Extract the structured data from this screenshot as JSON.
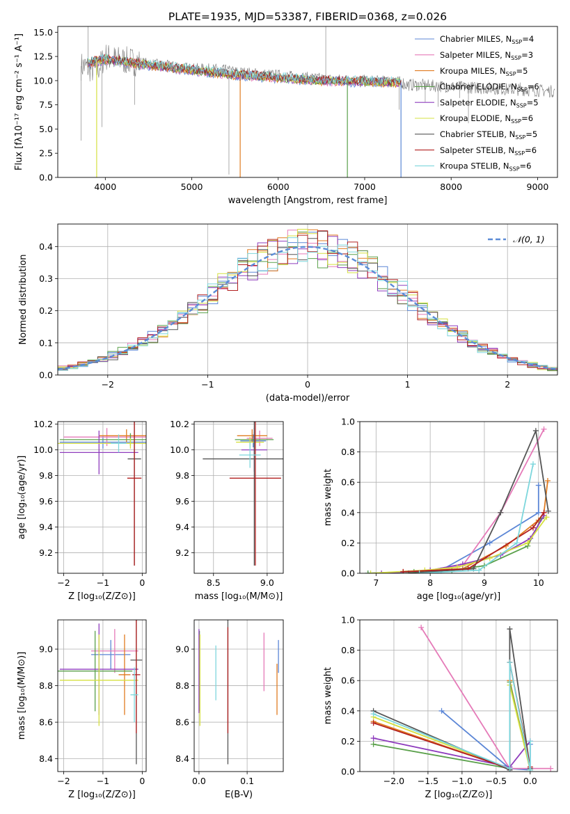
{
  "figure": {
    "title": "PLATE=1935, MJD=53387, FIBERID=0368, z=0.026"
  },
  "colors": {
    "Chabrier MILES": "#5b86d6",
    "Salpeter MILES": "#e57ab8",
    "Kroupa MILES": "#e07b20",
    "Chabrier ELODIE": "#5aa04a",
    "Salpeter ELODIE": "#8e3cbd",
    "Kroupa ELODIE": "#d6e040",
    "Chabrier STELIB": "#555555",
    "Salpeter STELIB": "#b22020",
    "Kroupa STELIB": "#7cd6dc",
    "normal": "#5b8bd6",
    "grid": "#b0b0b0"
  },
  "chart_data": [
    {
      "id": "spectrum",
      "type": "line",
      "xlabel": "wavelength [Angstrom, rest frame]",
      "ylabel": "Flux [fλ10⁻¹⁷ erg cm⁻² s⁻¹ A⁻¹]",
      "xlim": [
        3450,
        9230
      ],
      "ylim": [
        0,
        15.6
      ],
      "xticks": [
        4000,
        5000,
        6000,
        7000,
        8000,
        9000
      ],
      "yticks": [
        0.0,
        2.5,
        5.0,
        7.5,
        10.0,
        12.5,
        15.0
      ],
      "grid": false,
      "legend_position": "top-right",
      "legend": [
        {
          "text": "Chabrier MILES, N",
          "sub": "SSP",
          "tail": "=4",
          "series": "Chabrier MILES"
        },
        {
          "text": "Salpeter MILES, N",
          "sub": "SSP",
          "tail": "=3",
          "series": "Salpeter MILES"
        },
        {
          "text": "Kroupa MILES, N",
          "sub": "SSP",
          "tail": "=5",
          "series": "Kroupa MILES"
        },
        {
          "text": "Chabrier ELODIE, N",
          "sub": "SSP",
          "tail": "=6",
          "series": "Chabrier ELODIE"
        },
        {
          "text": "Salpeter ELODIE, N",
          "sub": "SSP",
          "tail": "=5",
          "series": "Salpeter ELODIE"
        },
        {
          "text": "Kroupa ELODIE, N",
          "sub": "SSP",
          "tail": "=6",
          "series": "Kroupa ELODIE"
        },
        {
          "text": "Chabrier STELIB, N",
          "sub": "SSP",
          "tail": "=5",
          "series": "Chabrier STELIB"
        },
        {
          "text": "Salpeter STELIB, N",
          "sub": "SSP",
          "tail": "=6",
          "series": "Salpeter STELIB"
        },
        {
          "text": "Kroupa STELIB, N",
          "sub": "SSP",
          "tail": "=6",
          "series": "Kroupa STELIB"
        }
      ],
      "data_continuum": {
        "x": [
          3750,
          3900,
          4000,
          4100,
          4300,
          4500,
          4800,
          5000,
          5300,
          5600,
          6000,
          6300,
          6600,
          6900,
          7200,
          7450
        ],
        "y": [
          11.5,
          11.0,
          12.5,
          12.2,
          12.0,
          11.7,
          11.4,
          11.2,
          11.1,
          10.8,
          10.5,
          10.3,
          10.1,
          10.0,
          9.9,
          9.8
        ]
      },
      "data_spikes": [
        {
          "x": 3720,
          "y": 3.8
        },
        {
          "x": 3800,
          "y": 15.6
        },
        {
          "x": 3900,
          "y": 6.0
        },
        {
          "x": 3960,
          "y": 5.2
        },
        {
          "x": 4340,
          "y": 7.5
        },
        {
          "x": 5430,
          "y": 0.3
        },
        {
          "x": 6550,
          "y": 15.6
        },
        {
          "x": 7400,
          "y": 7.0
        },
        {
          "x": 7600,
          "y": 9.1
        },
        {
          "x": 7700,
          "y": 7.8
        },
        {
          "x": 7850,
          "y": 7.3
        },
        {
          "x": 8100,
          "y": 8.2
        },
        {
          "x": 8200,
          "y": 5.6
        },
        {
          "x": 8300,
          "y": 9.4
        },
        {
          "x": 8800,
          "y": 8.9
        }
      ],
      "model_continuum": {
        "x": [
          3800,
          4000,
          4200,
          4500,
          5000,
          5500,
          6000,
          6500,
          7000,
          7420
        ],
        "y": [
          11.8,
          12.2,
          12.0,
          11.6,
          11.1,
          10.6,
          10.3,
          10.0,
          9.9,
          9.8
        ]
      },
      "model_drops": [
        {
          "x": 3900,
          "series": "Kroupa ELODIE"
        },
        {
          "x": 5560,
          "series": "Kroupa MILES"
        },
        {
          "x": 6800,
          "series": "Chabrier ELODIE"
        },
        {
          "x": 7420,
          "series": "Chabrier MILES"
        }
      ]
    },
    {
      "id": "residuals",
      "type": "histogram",
      "xlabel": "(data-model)/error",
      "ylabel": "Normed distribution",
      "xlim": [
        -2.5,
        2.5
      ],
      "ylim": [
        0,
        0.47
      ],
      "xticks": [
        -2,
        -1,
        0,
        1,
        2
      ],
      "yticks": [
        0.0,
        0.1,
        0.2,
        0.3,
        0.4
      ],
      "grid": true,
      "legend_position": "top-right",
      "legend": [
        {
          "text": "𝒩(0, 1)"
        }
      ],
      "bin_width": 0.1,
      "bin_start": -2.5,
      "normal": {
        "mu": 0,
        "sigma": 1
      }
    },
    {
      "id": "age_vs_Z",
      "type": "scatter",
      "xlabel": "Z [log₁₀(Z/Z⊙)]",
      "ylabel": "age  [log₁₀(age/yr)]",
      "xlim": [
        -2.15,
        0.1
      ],
      "ylim": [
        9.04,
        10.22
      ],
      "xticks": [
        -2,
        -1,
        0
      ],
      "xticklabels": [
        "−2",
        "−1",
        "0"
      ],
      "yticks": [
        9.2,
        9.4,
        9.6,
        9.8,
        10.0,
        10.2
      ],
      "grid": true,
      "points": [
        {
          "series": "Chabrier MILES",
          "x": -1.0,
          "y": 10.06,
          "xerr": 1.1,
          "yerr": 0.05
        },
        {
          "series": "Salpeter MILES",
          "x": -0.9,
          "y": 10.1,
          "xerr": 1.1,
          "yerr": 0.07
        },
        {
          "series": "Kroupa MILES",
          "x": -0.4,
          "y": 10.11,
          "xerr": 0.7,
          "yerr": 0.05
        },
        {
          "series": "Chabrier ELODIE",
          "x": -0.3,
          "y": 10.08,
          "xerr": 1.8,
          "yerr": 0.05
        },
        {
          "series": "Salpeter ELODIE",
          "x": -1.1,
          "y": 9.98,
          "xerr": 1.0,
          "yerr": 0.17
        },
        {
          "series": "Kroupa ELODIE",
          "x": -0.3,
          "y": 10.05,
          "xerr": 1.9,
          "yerr": 0.04
        },
        {
          "series": "Chabrier STELIB",
          "x": -0.2,
          "y": 9.93,
          "xerr": 0.17,
          "yerr": 0.83
        },
        {
          "series": "Salpeter STELIB",
          "x": -0.2,
          "y": 9.78,
          "xerr": 0.18,
          "yerr": 0.68
        },
        {
          "series": "Kroupa STELIB",
          "x": -0.6,
          "y": 10.05,
          "xerr": 0.2,
          "yerr": 0.07
        }
      ]
    },
    {
      "id": "age_vs_mass",
      "type": "scatter",
      "xlabel": "mass [log₁₀(M/M⊙)]",
      "ylabel": "",
      "xlim": [
        8.32,
        9.15
      ],
      "ylim": [
        9.04,
        10.22
      ],
      "xticks": [
        8.5,
        9.0
      ],
      "yticks": [
        9.2,
        9.4,
        9.6,
        9.8,
        10.0,
        10.2
      ],
      "grid": true,
      "points": [
        {
          "series": "Chabrier MILES",
          "x": 8.87,
          "y": 10.07,
          "xerr": 0.12,
          "yerr": 0.05
        },
        {
          "series": "Salpeter MILES",
          "x": 8.93,
          "y": 10.09,
          "xerr": 0.12,
          "yerr": 0.06
        },
        {
          "series": "Kroupa MILES",
          "x": 8.86,
          "y": 10.11,
          "xerr": 0.14,
          "yerr": 0.05
        },
        {
          "series": "Chabrier ELODIE",
          "x": 8.88,
          "y": 10.08,
          "xerr": 0.18,
          "yerr": 0.06
        },
        {
          "series": "Salpeter ELODIE",
          "x": 8.88,
          "y": 10.0,
          "xerr": 0.12,
          "yerr": 0.17
        },
        {
          "series": "Kroupa ELODIE",
          "x": 8.84,
          "y": 10.06,
          "xerr": 0.13,
          "yerr": 0.04
        },
        {
          "series": "Chabrier STELIB",
          "x": 8.88,
          "y": 9.93,
          "xerr": 0.48,
          "yerr": 0.83
        },
        {
          "series": "Salpeter STELIB",
          "x": 8.89,
          "y": 9.78,
          "xerr": 0.24,
          "yerr": 0.68
        },
        {
          "series": "Kroupa STELIB",
          "x": 8.84,
          "y": 9.96,
          "xerr": 0.1,
          "yerr": 0.1
        }
      ]
    },
    {
      "id": "weight_vs_age",
      "type": "line",
      "xlabel": "age  [log₁₀(age/yr)]",
      "ylabel": "mass weight",
      "xlim": [
        6.7,
        10.35
      ],
      "ylim": [
        0,
        1.0
      ],
      "xticks": [
        7,
        8,
        9,
        10
      ],
      "yticks": [
        0.0,
        0.2,
        0.4,
        0.6,
        0.8,
        1.0
      ],
      "grid": true,
      "series": [
        {
          "name": "Chabrier MILES",
          "x": [
            6.85,
            8.2,
            9.1,
            10.0,
            10.0
          ],
          "y": [
            0.0,
            0.02,
            0.2,
            0.4,
            0.58
          ]
        },
        {
          "name": "Salpeter MILES",
          "x": [
            7.8,
            8.6,
            9.3,
            10.1
          ],
          "y": [
            0.0,
            0.05,
            0.4,
            0.95
          ]
        },
        {
          "name": "Kroupa MILES",
          "x": [
            7.5,
            8.6,
            9.4,
            10.0,
            10.1,
            10.17
          ],
          "y": [
            0.01,
            0.03,
            0.18,
            0.35,
            0.4,
            0.61
          ]
        },
        {
          "name": "Chabrier ELODIE",
          "x": [
            6.85,
            7.7,
            8.4,
            9.0,
            9.8,
            10.05
          ],
          "y": [
            0.0,
            0.01,
            0.02,
            0.05,
            0.18,
            0.36
          ]
        },
        {
          "name": "Salpeter ELODIE",
          "x": [
            7.1,
            8.0,
            8.6,
            9.3,
            9.85,
            10.1
          ],
          "y": [
            0.0,
            0.02,
            0.06,
            0.12,
            0.23,
            0.38
          ]
        },
        {
          "name": "Kroupa ELODIE",
          "x": [
            6.9,
            7.9,
            8.5,
            9.1,
            9.8,
            10.15
          ],
          "y": [
            0.0,
            0.02,
            0.04,
            0.1,
            0.2,
            0.37
          ]
        },
        {
          "name": "Chabrier STELIB",
          "x": [
            7.6,
            8.8,
            9.3,
            9.95,
            10.18
          ],
          "y": [
            0.0,
            0.03,
            0.4,
            0.94,
            0.41
          ]
        },
        {
          "name": "Salpeter STELIB",
          "x": [
            7.5,
            8.7,
            9.9,
            10.1
          ],
          "y": [
            0.01,
            0.03,
            0.3,
            0.4
          ]
        },
        {
          "name": "Kroupa STELIB",
          "x": [
            7.8,
            8.9,
            9.6,
            9.9
          ],
          "y": [
            0.0,
            0.02,
            0.2,
            0.72
          ]
        }
      ]
    },
    {
      "id": "mass_vs_Z",
      "type": "scatter",
      "xlabel": "Z [log₁₀(Z/Z⊙)]",
      "ylabel": "mass [log₁₀(M/M⊙)]",
      "xlim": [
        -2.15,
        0.1
      ],
      "ylim": [
        8.33,
        9.16
      ],
      "xticks": [
        -2,
        -1,
        0
      ],
      "xticklabels": [
        "−2",
        "−1",
        "0"
      ],
      "yticks": [
        8.4,
        8.6,
        8.8,
        9.0
      ],
      "grid": true,
      "points": [
        {
          "series": "Chabrier MILES",
          "x": -0.8,
          "y": 8.97,
          "xerr": 0.5,
          "yerr": 0.08
        },
        {
          "series": "Salpeter MILES",
          "x": -0.7,
          "y": 8.99,
          "xerr": 0.6,
          "yerr": 0.12
        },
        {
          "series": "Kroupa MILES",
          "x": -0.45,
          "y": 8.86,
          "xerr": 0.15,
          "yerr": 0.22
        },
        {
          "series": "Chabrier ELODIE",
          "x": -1.2,
          "y": 8.88,
          "xerr": 0.95,
          "yerr": 0.22
        },
        {
          "series": "Salpeter ELODIE",
          "x": -1.1,
          "y": 8.89,
          "xerr": 1.0,
          "yerr": 0.25
        },
        {
          "series": "Kroupa ELODIE",
          "x": -1.1,
          "y": 8.83,
          "xerr": 1.0,
          "yerr": 0.25
        },
        {
          "series": "Chabrier STELIB",
          "x": -0.15,
          "y": 8.94,
          "xerr": 0.15,
          "yerr": 0.57
        },
        {
          "series": "Salpeter STELIB",
          "x": -0.15,
          "y": 8.86,
          "xerr": 0.1,
          "yerr": 0.32
        },
        {
          "series": "Kroupa STELIB",
          "x": -0.2,
          "y": 8.75,
          "xerr": 0.1,
          "yerr": 0.15
        }
      ]
    },
    {
      "id": "mass_vs_ebv",
      "type": "scatter",
      "xlabel": "E(B-V)",
      "ylabel": "",
      "xlim": [
        -0.01,
        0.175
      ],
      "ylim": [
        8.33,
        9.16
      ],
      "xticks": [
        0.0,
        0.1
      ],
      "yticks": [
        8.4,
        8.6,
        8.8,
        9.0
      ],
      "grid": true,
      "points": [
        {
          "series": "Chabrier MILES",
          "x": 0.165,
          "y": 8.96,
          "xerr": 0,
          "yerr": 0.09
        },
        {
          "series": "Salpeter MILES",
          "x": 0.135,
          "y": 8.93,
          "xerr": 0,
          "yerr": 0.16
        },
        {
          "series": "Kroupa MILES",
          "x": 0.162,
          "y": 8.78,
          "xerr": 0,
          "yerr": 0.14
        },
        {
          "series": "Chabrier ELODIE",
          "x": 0.001,
          "y": 8.88,
          "xerr": 0,
          "yerr": 0.22
        },
        {
          "series": "Salpeter ELODIE",
          "x": 0.0,
          "y": 8.88,
          "xerr": 0,
          "yerr": 0.23
        },
        {
          "series": "Kroupa ELODIE",
          "x": 0.002,
          "y": 8.83,
          "xerr": 0,
          "yerr": 0.25
        },
        {
          "series": "Chabrier STELIB",
          "x": 0.06,
          "y": 8.93,
          "xerr": 0,
          "yerr": 0.56
        },
        {
          "series": "Salpeter STELIB",
          "x": 0.06,
          "y": 8.83,
          "xerr": 0,
          "yerr": 0.29
        },
        {
          "series": "Kroupa STELIB",
          "x": 0.035,
          "y": 8.87,
          "xerr": 0,
          "yerr": 0.15
        }
      ]
    },
    {
      "id": "weight_vs_Z",
      "type": "line",
      "xlabel": "Z [log₁₀(Z/Z⊙)]",
      "ylabel": "mass weight",
      "xlim": [
        -2.5,
        0.4
      ],
      "ylim": [
        0,
        1.0
      ],
      "xticks": [
        -2.0,
        -1.5,
        -1.0,
        -0.5,
        0.0
      ],
      "xticklabels": [
        "−2.0",
        "−1.5",
        "−1.0",
        "−0.5",
        "0.0"
      ],
      "yticks": [
        0.0,
        0.2,
        0.4,
        0.6,
        0.8,
        1.0
      ],
      "grid": true,
      "series": [
        {
          "name": "Chabrier MILES",
          "x": [
            -1.3,
            -0.3,
            0.0,
            0.0
          ],
          "y": [
            0.4,
            0.02,
            0.01,
            0.18
          ]
        },
        {
          "name": "Salpeter MILES",
          "x": [
            -1.6,
            -0.3,
            0.0,
            0.3
          ],
          "y": [
            0.95,
            0.02,
            0.02,
            0.02
          ]
        },
        {
          "name": "Kroupa MILES",
          "x": [
            -2.3,
            -0.3,
            -0.3,
            0.0
          ],
          "y": [
            0.33,
            0.02,
            0.6,
            0.01
          ]
        },
        {
          "name": "Chabrier ELODIE",
          "x": [
            -2.3,
            -0.3,
            -0.3,
            0.0
          ],
          "y": [
            0.18,
            0.02,
            0.59,
            0.01
          ]
        },
        {
          "name": "Salpeter ELODIE",
          "x": [
            -2.3,
            -0.3,
            0.0
          ],
          "y": [
            0.22,
            0.03,
            0.2
          ]
        },
        {
          "name": "Kroupa ELODIE",
          "x": [
            -2.3,
            -0.3,
            -0.3,
            0.0
          ],
          "y": [
            0.36,
            0.02,
            0.57,
            0.01
          ]
        },
        {
          "name": "Chabrier STELIB",
          "x": [
            -2.3,
            -0.3,
            -0.3,
            0.0
          ],
          "y": [
            0.4,
            0.01,
            0.94,
            0.02
          ]
        },
        {
          "name": "Salpeter STELIB",
          "x": [
            -2.3,
            -0.3,
            -0.3,
            0.0
          ],
          "y": [
            0.32,
            0.02,
            0.72,
            0.03
          ]
        },
        {
          "name": "Kroupa STELIB",
          "x": [
            -2.3,
            -0.3,
            -0.3,
            0.0,
            0.0
          ],
          "y": [
            0.38,
            0.02,
            0.72,
            0.01,
            0.2
          ]
        }
      ]
    }
  ]
}
